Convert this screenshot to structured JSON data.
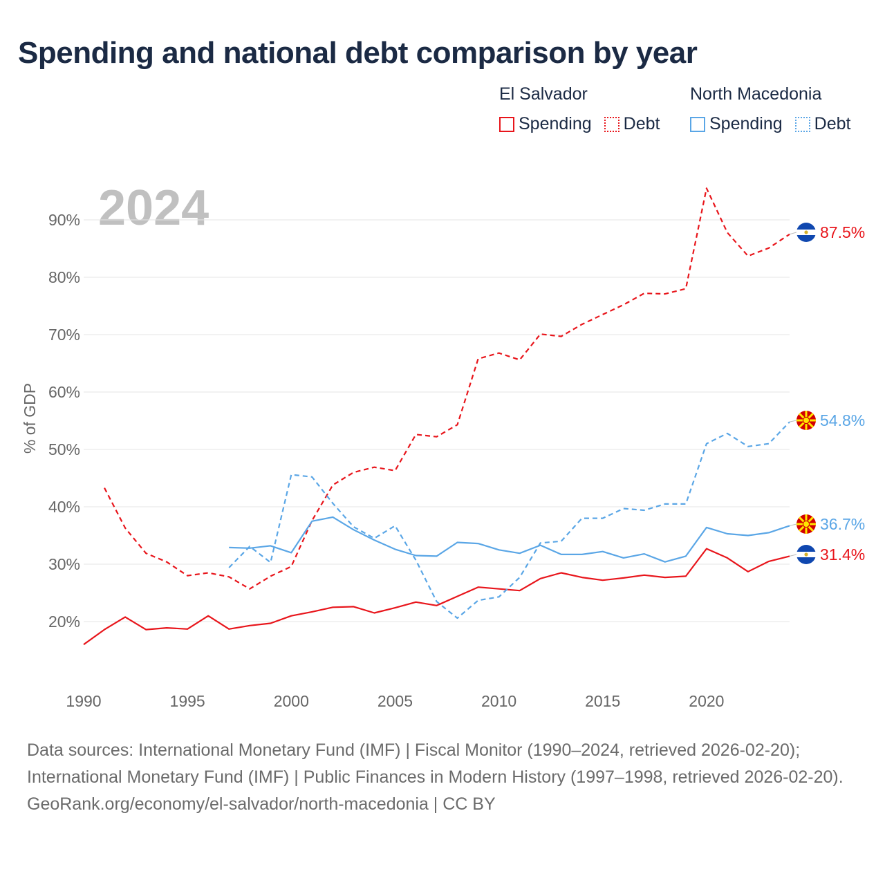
{
  "title": "Spending and national debt comparison by year",
  "legend": [
    {
      "country": "El Salvador",
      "items": [
        {
          "label": "Spending",
          "style": "solid",
          "color": "#e8151b"
        },
        {
          "label": "Debt",
          "style": "dotted",
          "color": "#e8151b"
        }
      ]
    },
    {
      "country": "North Macedonia",
      "items": [
        {
          "label": "Spending",
          "style": "solid",
          "color": "#5aa6e6"
        },
        {
          "label": "Debt",
          "style": "dotted",
          "color": "#5aa6e6"
        }
      ]
    }
  ],
  "chart_data": {
    "type": "line",
    "year_label": "2024",
    "ylabel": "% of GDP",
    "xlabel": "",
    "xlim": [
      1990,
      2024
    ],
    "ylim": [
      10,
      96
    ],
    "x_ticks": [
      1990,
      1995,
      2000,
      2005,
      2010,
      2015,
      2020
    ],
    "y_ticks": [
      20,
      30,
      40,
      50,
      60,
      70,
      80,
      90
    ],
    "y_tick_labels": [
      "20%",
      "30%",
      "40%",
      "50%",
      "60%",
      "70%",
      "80%",
      "90%"
    ],
    "grid": true,
    "series": [
      {
        "name": "El Salvador Debt",
        "country": "El Salvador",
        "metric": "Debt",
        "color": "#e8151b",
        "dash": "dashed",
        "flag": "el-salvador-flag-icon",
        "end_label": "87.5%",
        "x": [
          1991,
          1992,
          1993,
          1994,
          1995,
          1996,
          1997,
          1998,
          1999,
          2000,
          2001,
          2002,
          2003,
          2004,
          2005,
          2006,
          2007,
          2008,
          2009,
          2010,
          2011,
          2012,
          2013,
          2014,
          2015,
          2016,
          2017,
          2018,
          2019,
          2020,
          2021,
          2022,
          2023,
          2024
        ],
        "y": [
          43.3,
          36.3,
          31.9,
          30.4,
          28.0,
          28.5,
          27.8,
          25.7,
          27.9,
          29.6,
          37.6,
          43.8,
          46.0,
          46.9,
          46.3,
          52.6,
          52.2,
          54.3,
          65.8,
          66.8,
          65.6,
          70.1,
          69.7,
          71.8,
          73.5,
          75.2,
          77.2,
          77.1,
          78.0,
          95.5,
          87.8,
          83.7,
          85.1,
          87.5
        ]
      },
      {
        "name": "El Salvador Spending",
        "country": "El Salvador",
        "metric": "Spending",
        "color": "#e8151b",
        "dash": "solid",
        "flag": "el-salvador-flag-icon",
        "end_label": "31.4%",
        "x": [
          1990,
          1991,
          1992,
          1993,
          1994,
          1995,
          1996,
          1997,
          1998,
          1999,
          2000,
          2001,
          2002,
          2003,
          2004,
          2005,
          2006,
          2007,
          2008,
          2009,
          2010,
          2011,
          2012,
          2013,
          2014,
          2015,
          2016,
          2017,
          2018,
          2019,
          2020,
          2021,
          2022,
          2023,
          2024
        ],
        "y": [
          16.0,
          18.6,
          20.8,
          18.6,
          18.9,
          18.7,
          21.0,
          18.7,
          19.3,
          19.7,
          21.0,
          21.7,
          22.5,
          22.6,
          21.5,
          22.4,
          23.4,
          22.8,
          24.4,
          26.0,
          25.7,
          25.4,
          27.5,
          28.5,
          27.7,
          27.2,
          27.6,
          28.1,
          27.7,
          27.9,
          32.7,
          31.1,
          28.7,
          30.5,
          31.4
        ]
      },
      {
        "name": "North Macedonia Debt",
        "country": "North Macedonia",
        "metric": "Debt",
        "color": "#5aa6e6",
        "dash": "dashed",
        "flag": "north-macedonia-flag-icon",
        "end_label": "54.8%",
        "x": [
          1997,
          1998,
          1999,
          2000,
          2001,
          2002,
          2003,
          2004,
          2005,
          2006,
          2007,
          2008,
          2009,
          2010,
          2011,
          2012,
          2013,
          2014,
          2015,
          2016,
          2017,
          2018,
          2019,
          2020,
          2021,
          2022,
          2023,
          2024
        ],
        "y": [
          29.4,
          33.1,
          30.3,
          45.6,
          45.2,
          40.6,
          36.5,
          34.5,
          36.7,
          30.7,
          23.5,
          20.6,
          23.7,
          24.3,
          27.7,
          33.7,
          34.0,
          38.0,
          38.0,
          39.7,
          39.4,
          40.5,
          40.5,
          51.0,
          52.8,
          50.5,
          51.0,
          54.8
        ]
      },
      {
        "name": "North Macedonia Spending",
        "country": "North Macedonia",
        "metric": "Spending",
        "color": "#5aa6e6",
        "dash": "solid",
        "flag": "north-macedonia-flag-icon",
        "end_label": "36.7%",
        "x": [
          1997,
          1998,
          1999,
          2000,
          2001,
          2002,
          2003,
          2004,
          2005,
          2006,
          2007,
          2008,
          2009,
          2010,
          2011,
          2012,
          2013,
          2014,
          2015,
          2016,
          2017,
          2018,
          2019,
          2020,
          2021,
          2022,
          2023,
          2024
        ],
        "y": [
          32.9,
          32.8,
          33.2,
          32.0,
          37.5,
          38.2,
          36.0,
          34.2,
          32.6,
          31.5,
          31.4,
          33.8,
          33.6,
          32.5,
          31.9,
          33.3,
          31.7,
          31.7,
          32.2,
          31.1,
          31.8,
          30.4,
          31.4,
          36.4,
          35.3,
          35.0,
          35.5,
          36.7
        ]
      }
    ]
  },
  "footer": {
    "sources": "Data sources: International Monetary Fund (IMF) | Fiscal Monitor (1990–2024, retrieved 2026-02-20); International Monetary Fund (IMF) | Public Finances in Modern History (1997–1998, retrieved 2026-02-20).",
    "credit": "GeoRank.org/economy/el-salvador/north-macedonia | CC BY"
  }
}
